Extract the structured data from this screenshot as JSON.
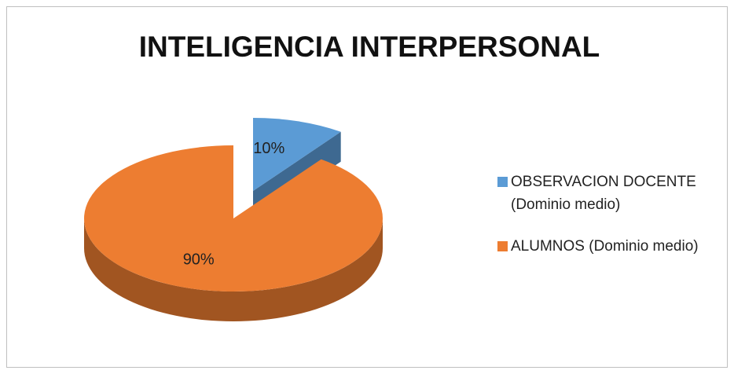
{
  "chart_data": {
    "type": "pie",
    "title": "INTELIGENCIA INTERPERSONAL",
    "categories": [
      "OBSERVACION DOCENTE (Dominio medio)",
      "ALUMNOS (Dominio medio)"
    ],
    "values": [
      10,
      90
    ],
    "value_labels": [
      "10%",
      "90%"
    ],
    "colors": [
      "#5b9bd5",
      "#ed7d31"
    ],
    "legend": "right"
  }
}
